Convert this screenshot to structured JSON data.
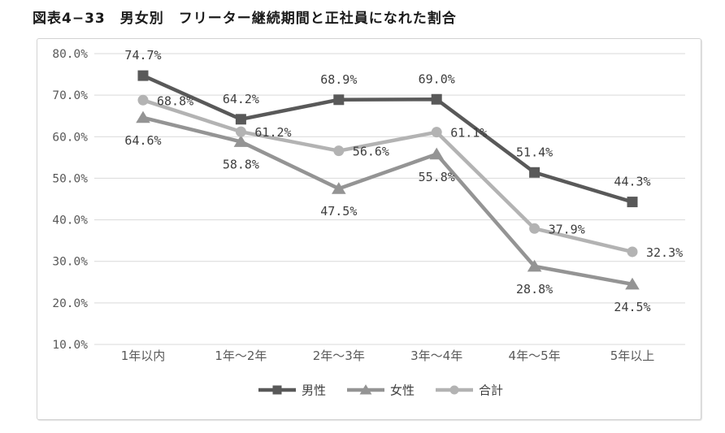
{
  "chart_data": {
    "type": "line",
    "title": "図表4−33　男女別　フリーター継続期間と正社員になれた割合",
    "categories": [
      "1年以内",
      "1年～2年",
      "2年～3年",
      "3年～4年",
      "4年～5年",
      "5年以上"
    ],
    "series": [
      {
        "key": "male",
        "name": "男性",
        "marker": "square",
        "color": "#595959",
        "values": [
          74.7,
          64.2,
          68.9,
          69.0,
          51.4,
          44.3
        ],
        "label_position": "above"
      },
      {
        "key": "female",
        "name": "女性",
        "marker": "triangle",
        "color": "#949494",
        "values": [
          64.6,
          58.8,
          47.5,
          55.8,
          28.8,
          24.5
        ],
        "label_position": "below"
      },
      {
        "key": "total",
        "name": "合計",
        "marker": "circle",
        "color": "#b3b3b3",
        "values": [
          68.8,
          61.2,
          56.6,
          61.1,
          37.9,
          32.3
        ],
        "label_position": "right"
      }
    ],
    "y_axis": {
      "min": 10,
      "max": 80,
      "step": 10,
      "tick_labels": [
        "80.0%",
        "70.0%",
        "60.0%",
        "50.0%",
        "40.0%",
        "30.0%",
        "20.0%",
        "10.0%"
      ]
    },
    "value_suffix": "%",
    "grid": true,
    "legend_position": "bottom"
  },
  "colors": {
    "gridline": "#d9d9d9",
    "tick_text": "#595959",
    "category_text": "#595959",
    "data_label_text": "#3d3d3d",
    "legend_text": "#3d3d3d",
    "background": "#ffffff",
    "chart_border": "#d2d2d2"
  }
}
